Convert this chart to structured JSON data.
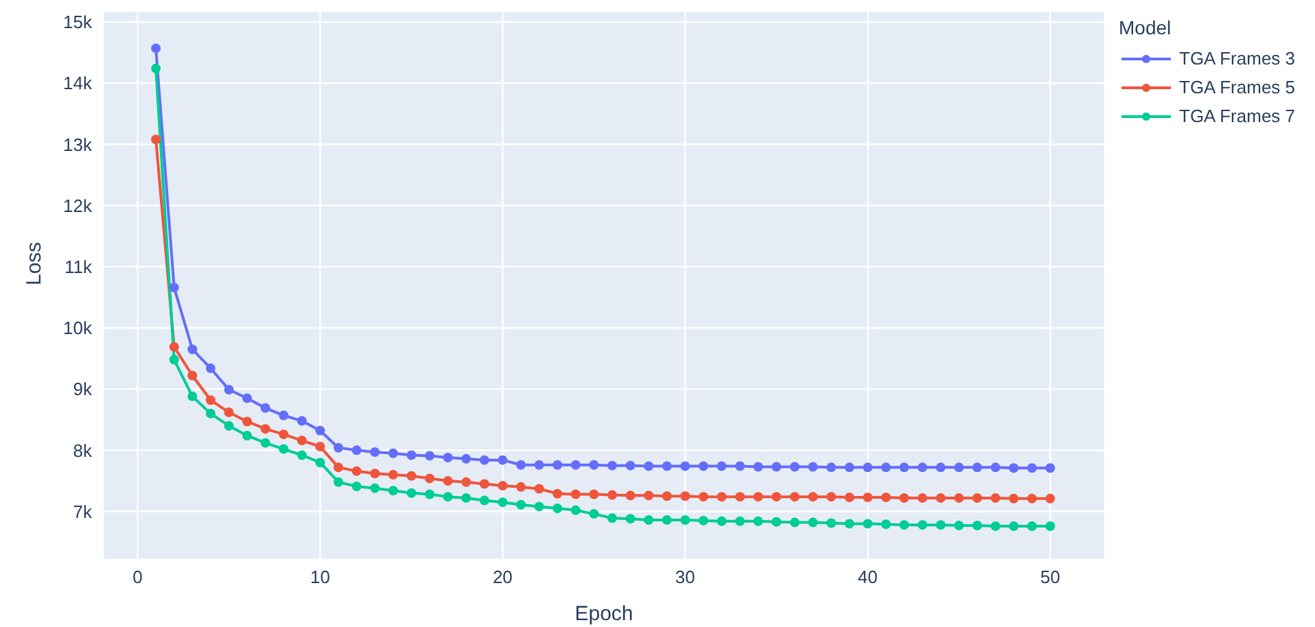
{
  "chart_data": {
    "type": "line",
    "xlabel": "Epoch",
    "ylabel": "Loss",
    "legend_title": "Model",
    "legend": "top right",
    "grid": true,
    "marker": "circle",
    "line_style": "solid",
    "x": [
      1,
      2,
      3,
      4,
      5,
      6,
      7,
      8,
      9,
      10,
      11,
      12,
      13,
      14,
      15,
      16,
      17,
      18,
      19,
      20,
      21,
      22,
      23,
      24,
      25,
      26,
      27,
      28,
      29,
      30,
      31,
      32,
      33,
      34,
      35,
      36,
      37,
      38,
      39,
      40,
      41,
      42,
      43,
      44,
      45,
      46,
      47,
      48,
      49,
      50
    ],
    "xlim": [
      -1.9,
      53
    ],
    "xticks": [
      0,
      10,
      20,
      30,
      40,
      50
    ],
    "ylim": [
      6210,
      15180
    ],
    "yticks": [
      {
        "value": 7000,
        "label": "7k"
      },
      {
        "value": 8000,
        "label": "8k"
      },
      {
        "value": 9000,
        "label": "9k"
      },
      {
        "value": 10000,
        "label": "10k"
      },
      {
        "value": 11000,
        "label": "11k"
      },
      {
        "value": 12000,
        "label": "12k"
      },
      {
        "value": 13000,
        "label": "13k"
      },
      {
        "value": 14000,
        "label": "14k"
      },
      {
        "value": 15000,
        "label": "15k"
      }
    ],
    "series": [
      {
        "name": "TGA Frames 3",
        "color": "#636efa",
        "values": [
          14570,
          10660,
          9650,
          9340,
          8990,
          8850,
          8690,
          8570,
          8480,
          8320,
          8040,
          8000,
          7970,
          7950,
          7920,
          7910,
          7880,
          7860,
          7840,
          7840,
          7760,
          7760,
          7760,
          7760,
          7760,
          7750,
          7750,
          7740,
          7740,
          7740,
          7740,
          7740,
          7740,
          7730,
          7730,
          7730,
          7730,
          7720,
          7720,
          7720,
          7720,
          7720,
          7720,
          7720,
          7720,
          7720,
          7720,
          7710,
          7710,
          7710
        ]
      },
      {
        "name": "TGA Frames 5",
        "color": "#ef553b",
        "values": [
          13080,
          9690,
          9220,
          8820,
          8620,
          8470,
          8350,
          8260,
          8160,
          8060,
          7720,
          7660,
          7620,
          7600,
          7580,
          7540,
          7500,
          7480,
          7450,
          7420,
          7400,
          7370,
          7290,
          7280,
          7280,
          7270,
          7260,
          7260,
          7250,
          7250,
          7240,
          7240,
          7240,
          7240,
          7240,
          7240,
          7240,
          7240,
          7230,
          7230,
          7230,
          7220,
          7220,
          7220,
          7220,
          7220,
          7220,
          7210,
          7210,
          7210
        ]
      },
      {
        "name": "TGA Frames 7",
        "color": "#00cc96",
        "values": [
          14240,
          9480,
          8880,
          8600,
          8400,
          8240,
          8120,
          8020,
          7920,
          7800,
          7480,
          7410,
          7380,
          7340,
          7300,
          7280,
          7240,
          7220,
          7180,
          7150,
          7110,
          7080,
          7050,
          7020,
          6960,
          6890,
          6880,
          6860,
          6860,
          6860,
          6850,
          6840,
          6840,
          6840,
          6830,
          6820,
          6820,
          6810,
          6800,
          6800,
          6790,
          6780,
          6780,
          6780,
          6770,
          6770,
          6760,
          6760,
          6760,
          6760
        ]
      }
    ]
  }
}
